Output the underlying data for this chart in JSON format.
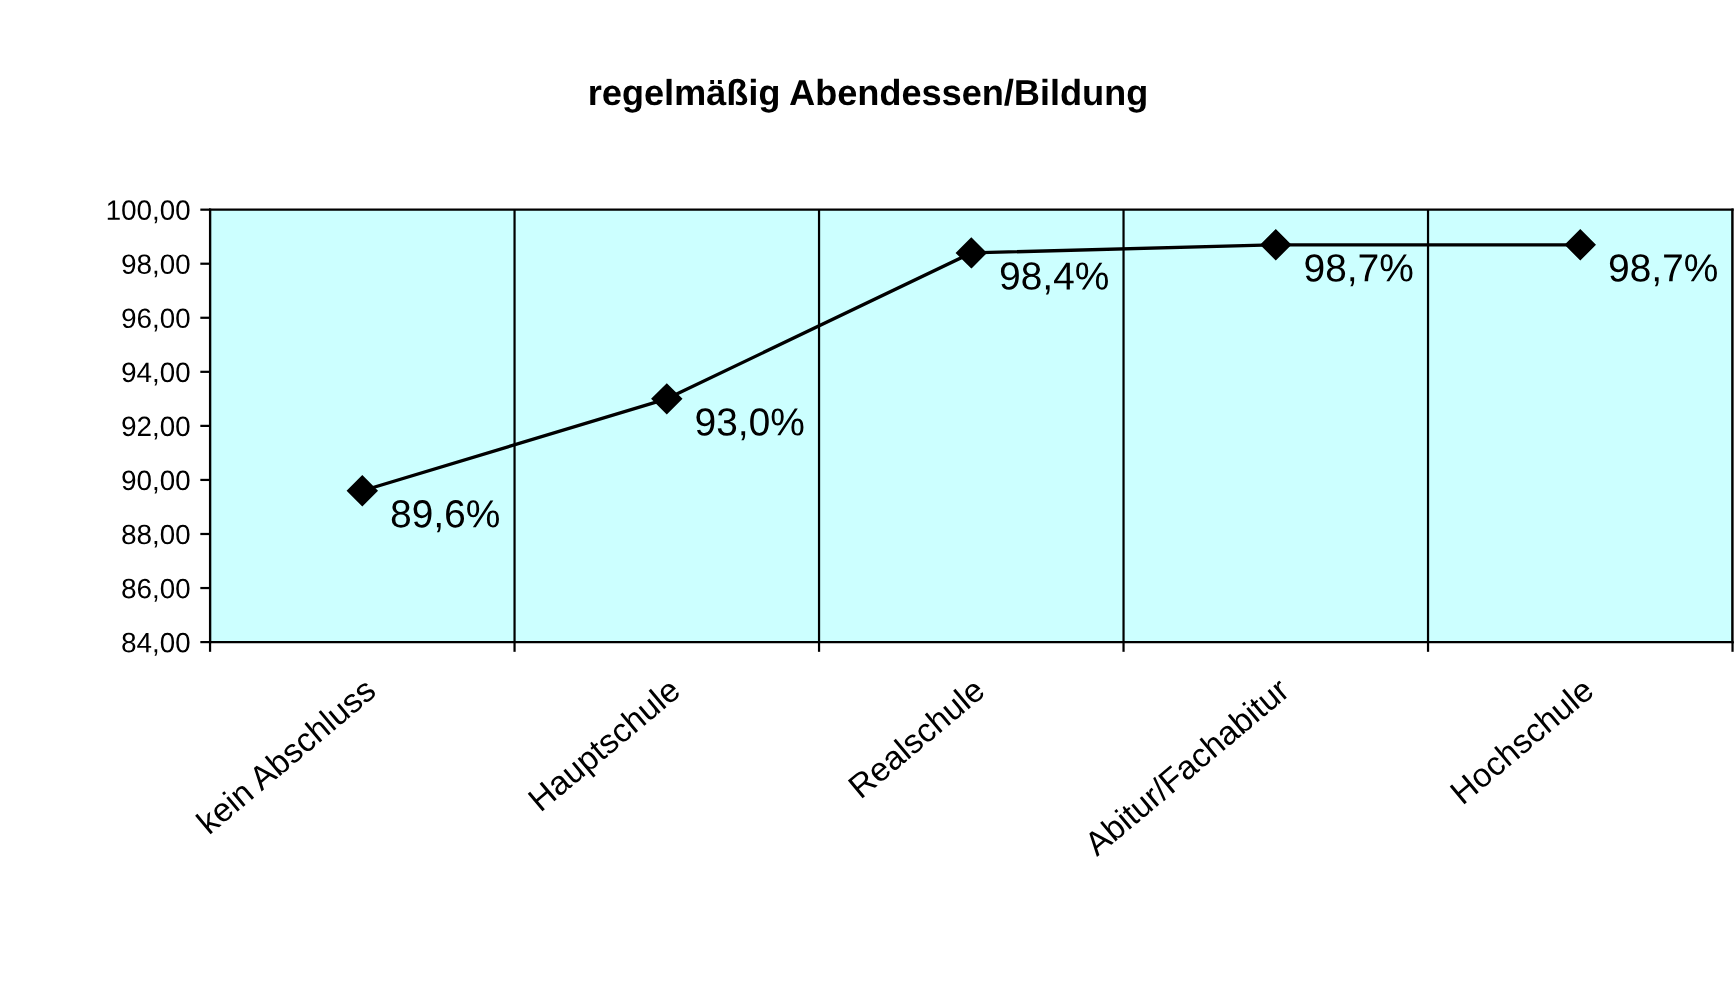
{
  "chart_data": {
    "type": "line",
    "title": "regelmäßig Abendessen/Bildung",
    "categories": [
      "kein Abschluss",
      "Hauptschule",
      "Realschule",
      "Abitur/Fachabitur",
      "Hochschule"
    ],
    "series": [
      {
        "color": "#000000",
        "values": [
          89.6,
          93.0,
          98.4,
          98.7,
          98.7
        ],
        "value_labels": [
          "89,6%",
          "93,0%",
          "98,4%",
          "98,7%",
          "98,7%"
        ]
      }
    ],
    "ylim": [
      84,
      100
    ],
    "yticks": [
      {
        "value": 84,
        "label": "84,00"
      },
      {
        "value": 86,
        "label": "86,00"
      },
      {
        "value": 88,
        "label": "88,00"
      },
      {
        "value": 90,
        "label": "90,00"
      },
      {
        "value": 92,
        "label": "92,00"
      },
      {
        "value": 94,
        "label": "94,00"
      },
      {
        "value": 96,
        "label": "96,00"
      },
      {
        "value": 98,
        "label": "98,00"
      },
      {
        "value": 100,
        "label": "100,00"
      }
    ],
    "grid": "x",
    "marker": "diamond",
    "line_style": "solid"
  }
}
